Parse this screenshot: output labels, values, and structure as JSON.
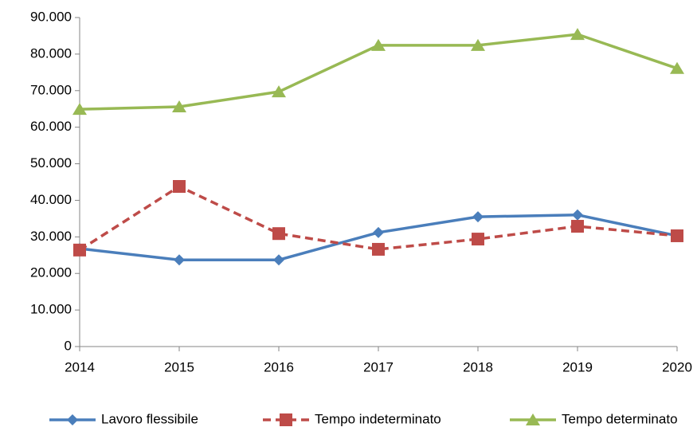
{
  "chart_data": {
    "type": "line",
    "x": [
      2014,
      2015,
      2016,
      2017,
      2018,
      2019,
      2020
    ],
    "xlim": [
      2014,
      2020
    ],
    "xticks": [
      2014,
      2015,
      2016,
      2017,
      2018,
      2019,
      2020
    ],
    "ylim": [
      0,
      90000
    ],
    "yticks": [
      0,
      {
        "value": 10000,
        "label": "10.000"
      },
      {
        "value": 20000,
        "label": "20.000"
      },
      {
        "value": 30000,
        "label": "30.000"
      },
      {
        "value": 40000,
        "label": "40.000"
      },
      {
        "value": 50000,
        "label": "50.000"
      },
      {
        "value": 60000,
        "label": "60.000"
      },
      {
        "value": 70000,
        "label": "70.000"
      },
      {
        "value": 80000,
        "label": "80.000"
      },
      {
        "value": 90000,
        "label": "90.000"
      }
    ],
    "grid": false,
    "legend": "bottom",
    "series": [
      {
        "name": "Lavoro flessibile",
        "color": "#4a7ebb",
        "marker": "diamond",
        "dash": false,
        "values": [
          26800,
          23700,
          23700,
          31200,
          35500,
          36000,
          30300
        ]
      },
      {
        "name": "Tempo indeterminato",
        "color": "#be4b48",
        "marker": "square",
        "dash": true,
        "values": [
          26400,
          43800,
          30900,
          26600,
          29400,
          32900,
          30300
        ]
      },
      {
        "name": "Tempo determinato",
        "color": "#98b954",
        "marker": "triangle",
        "dash": false,
        "values": [
          64900,
          65600,
          69700,
          82400,
          82400,
          85400,
          76100
        ]
      }
    ]
  }
}
